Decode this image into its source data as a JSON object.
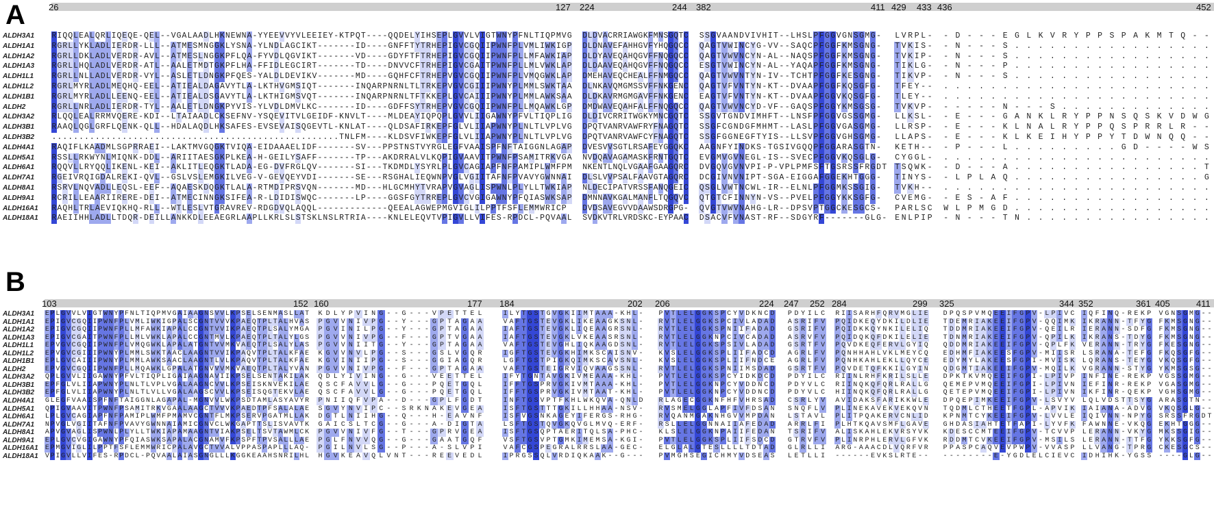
{
  "sequence_names": [
    "ALDH3A1",
    "ALDH1A1",
    "ALDH1A2",
    "ALDH1A3",
    "ALDH1L1",
    "ALDH1L2",
    "ALDH1B1",
    "ALDH2",
    "ALDH3A2",
    "ALDH3B1",
    "ALDH3B2",
    "ALDH4A1",
    "ALDH5A1",
    "ALDH6A1",
    "ALDH7A1",
    "ALDH8A1",
    "ALDH9A1",
    "ALDH16A1",
    "ALDH18A1"
  ],
  "colors": {
    "ruler": "#cfcfcf",
    "conserved_high": "#3447d6",
    "conserved_mid": "#6676e4",
    "conserved_low": "#9ea9ee",
    "conserved_faint": "#d3d8f7"
  },
  "panels": [
    {
      "label": "A",
      "blocks": [
        {
          "start": "26",
          "end": "127",
          "rows": [
            "RIQQLEALQRLIQEQE-QEL--VGALAADLHKNEWNA-YYEEVVYVLEEIEY-KTPQT----QQDELYIHSEPLGVVLVIGTWNYPFNLTIQPMVG",
            "RGRLLYKLADLIERDR-LLL--ATMESMNGGKLYSNA-YLNDLAGCIKT-------ID----GNFFTYTRHEPIGVCGQIIPWNFPLVMLIWKIGP",
            "RGRLLDKLADLVERDR-AVL--ATMESLNGGKPFLQA-FYVDLQGVIKT-------VD----GDYFTFTRHEPIGVCGQIIPWNFPLLMFAWKIAP",
            "RGRLLHQLADLVERDR-ATL--AALETMDTGKPFLHA-FFIDLEGCIRT-------TD----DNVVCFTRHEPIGVCGAITPWNFPLLMLVWKLAP",
            "RGRLLNLLADLVERDR-VYL--ASLETLDNGKPFQES-YALDLDEVIKV-------MD----GQHFCFTRHEPVGVCGQIIPWNFPLVMQGWKLAP",
            "RGRLMYRLADLMEQHQ-EEL--ATIEALDAGAVYTLA-LKTHVGMSIQT-------INQARPNRNLTLTRKEPVGVCGIIIPWNYPLMMLSWKTAA",
            "RGRLMYRLADLLEENQ-EEL--ATIEALDSGAVYTLA-LKTHIGMSVQT-------INQARPNRNLTFTKKEPLGVCAIIIPWNYPLMMLAWKSAA",
            "RGRLLNRLADLIERDR-TYL--AALETLDNGKPYVIS-YLVDLDMVLKC-------ID----GDFFSYTRHEPVGVCGQIIPWNFPLLMQAWKLGP",
            "RLQQLEALRRMVQERE-KDI--LTAIAADLCKSEFNV-YSQEVITVLGEIDF-KNVLT----MLDEAYIQPQPLGVVLIIGAWNYPFVLTIQPLIG",
            "RAAQLQGLGRFLQENK-QLL--HDALAQDLHKSAFES-EVSEVAISQGEVTL-KNLAT----QLDSAFIRKEPFGLVLIIAPWNYPLNLTLVPLVG",
            ".....................................................TNLFM----KLDSVFIWKEPFGLVLIIAPWNYPLNLTLVPLVG",
            "RAQIFLKAADMLSGPRRAEI--LAKTMVGQGKTVIQA-EIDAAAELIDF-------SV---PPSTNSTVYRGLEGFVAAISPFNFTAIGGNLAGAP",
            "RSSLLRKWYNLMIQNK-DDL--ARIITAESGKPLKEA-H-GEILYSAFF-------TP---AKDRRALVLKQPIGVAAVITPWNFPSAMITRKVGA",
            "RQQVLLRYQQLIKENL-KEI--AKLITLEQGKTLADA-EG-DVFRGLQV-------SI---TKDMDLYSYRLPLGVCAGIAPFNFPAMIPLWMFPM",
            "RGEIVRQIGDALREKI-QVL--GSLVSLEMGKILVEG-V-GEVQEYVDI-------SE---RSGHALIEQWNPVGLVGIITAFNFPVAVYGWNNAI",
            "RSRVLNQVADLLEQSL-EEF--AQAESKDQGKTLALA-RTMDIPRSVQN-------MD---HLGCMHYTVRAPVGVAGLISPWNLPLYLLTWKIAP",
            "RCRILLEAARIIRERE-DEI--ATMECINNGKSIFEA-R-LDIDISWQC-------LP----GGSFGYTRREPLGVCVGIGAWNYPFQIASWKSAP",
            "RAQHLTRLAEVIQKHQ-RLL--WTLESLVTGRAVREV-RDGDVQLAQQL-------------QEEALAGWEPMGVIGLILPPTFSFLEMMWRICP",
            "RAEIIHHLADLLTDQR-DEILLANKKDLEEAEGRLAAPLLKRLSLSTSKLNSLRTRIA----KNLELEQVTVPIGVLLVIFES-RPDCL-PQVAAL"
          ]
        },
        {
          "start": "224",
          "end": "244",
          "rows": [
            "DLDVACRRIAWGKFMNSGQTC",
            "DLDNAVEFAHHGVFYHQGQCC",
            "DLDYAVEQAHQGVFFNQGQCC",
            "DLDAAVEQAHQGVFFNQGQCC",
            "DMEHAVEQCHEALFFNMGQCC",
            "DLNKAVQMGMSSVFFNKGENC",
            "DLDKAVRMGMGAVFFNKGENC",
            "DMDWAVEQAHFALFFNQGQCC",
            "DLDIVCRRITWGKYMNCGQTC",
            "DPQTVANRVAWFRYFNAGQTC",
            "DPQTVANRVAWFCYFNAGQTC",
            "DVESVVSGTLRSAFEYGGQKC",
            "NVDQAVAGAMASKFRNTGQTC",
            "NKENTLNQLVGAAFGAAGQRC",
            "DLSLVVPSALFAAVGTAGQRC",
            "NLDECIPATVRSSFANQGEIC",
            "DMNNAVKGALMANFLTQGQVC",
            "DVDSAVEGVVDAAWSDRGPG-",
            "SVDKVTRLVRDSKC-EYPAAC"
          ]
        },
        {
          "start": "382",
          "end": "411",
          "rows": [
            "SSGVAANDVIVHIT--LHSLPFGGVGNSGMG-",
            "QAGTVWINCYG-VV--SAQCPFGGFKMSGNG-",
            "QAGTVWVNCYN-AL--NAQSPFGGFKMSGNG-",
            "ESGTVWINCYN-AL--YAQAPFGGFKMSGNG-",
            "QAGTVWVNTYN-IV--TCHTPFGGFKESGNG-",
            "QAGTVFVNTYN-KT--DVAAPFGGFKQSGFG-",
            "EAGTVFVNTYN-KT--DVAAPFGGVKQSGFG-",
            "QAGTVWVNCYD-VF--GAQSPFGGYKMSGSG-",
            "SSGVTGNDVIMHFT--LNSFPFGGVGSSGMG-",
            "SSGFCGNDGFMHMT--LASLPFGGVGASGMG-",
            "SSGFGGNEGFTYIS--LLSVPFGGVGHSGMG-",
            "AAGNFYINDKS-TGSIVGQQPFGGARASGTN-",
            "EVGMVGVNEGL-IS--SVECPFGGVKQSGLG-",
            "DVGQVGVNVPI-P-VPLPMFSFTGSRSSFRGDT",
            "DCGIVNVNIPT-SGA-EIGGAFGGEKHTGGG-",
            "QSGLVWTNCWL-IR--ELNLPFGGMKSSGIG-",
            "QTGTCFINNYN-VS--PVELPFGGYKKSGFG-",
            "QVGTVWVNAHG-LR--DPSVPTGGCKESGCS-",
            "DSACVFVNAST-RF--SDGYRF-------GLG-"
          ]
        },
        {
          "start": "429",
          "end": "433",
          "rows": [
            "LVRPL-",
            "TVKIS-",
            "TVKIP-",
            "TIKLG-",
            "TIKVP-",
            "TFEY--",
            "TLEY--",
            "TVKVP-",
            "LLKSL-",
            "LLRSP-",
            "LLAPS-",
            "KETH--",
            "CYGGL-",
            "TSQWK-",
            "TINYS-",
            "TVKH--",
            "CVEMG-",
            "PARLSC",
            "ENLPIP"
          ]
        },
        {
          "start": "436",
          "end": "452",
          "rows": [
            "-D---EGLKVRYPPSPAKMTQ--",
            "-N---S.................",
            "-N---S.................",
            "-N---P.................",
            "-N---S.................",
            ".......................",
            ".......................",
            "-----N---S.............",
            "-E---GANKLRYPPNSQSKVDWG",
            "-E---KLNALRYPPQSPRRLR--",
            "-E---KLKEIHYPPYTDWNQQ--",
            "-P---L.........GD----WS",
            ".......................",
            "-D---A................T",
            "-LPLAQ................G",
            ".......................",
            "-ES-AF.................",
            "WLPMGD.................",
            "-N---TN................"
          ]
        }
      ]
    },
    {
      "label": "B",
      "blocks": [
        {
          "start": "103",
          "end": "152",
          "rows": [
            "EPLGVVLVIGTWNYPFNLTIQPMVGAIAAGNSVVLKPSELSENMASLLAT",
            "EPIGVCGQIIPWNFPLVMLIWKIGPALSCGNTVVVKPAEQTPLTALHVAS",
            "EPIGVCGQIIPWNFPLLMFAWKIAPALCCGNTVVIKPAEQTPLSALYMGA",
            "EPIGVCGAITPWNFPLLMLVWKLAPALCCGNTMVLKPAEQTPLTALYLGS",
            "EPVGVCGQIIPWNFPLVMQGWKLAPALATGNTVVMKVAEQTPLSALYLAS",
            "EPVGVCGIIIPWNYPLMMLSWKTAACLAAGNTVVIKPAQVTPLTALKFAE",
            "EPLGVCAIIIPWNYPLMMLAWKSAACLAAGNTLVLKPAQVTPLTALKFAE",
            "EPVGVCGQIIPWNFPLLMQAWKLGPALATGNVVVMKVAEQTPLTALYVAN",
            "QPLGVVLIIGAWNYPFVLTIQPLIGAIAAGNAVIIKPSELSENTAKILAK",
            "EPFGLVLIIAPWNYPLNLTLVPLVGALAAGNCVVLKPSEISKNVEKILAE",
            "EPFGLVLIIAPWNYPLNLTLVLLVGALAAGSCVVLKPSEISQGTEKVLAE",
            "GLEGFVAAISPFNFTAIGGNLAGAPAL-MGNVVLWKPSDTAMLASYAVYR",
            "QPIGVAAVITPWNFPSAMITRKVGAALAAGCTVVVKPAEDTPFSALALAE",
            "LPLGVCAGIAPFNFPAMIPLWMFPMAMVCGNTFLMKPSERVPGATMLLAK",
            "NPVGLVGIITAFNFPVAVYGWNNAIAMICGNVCLWKGAPTTSLISVAVTK",
            "APVGVAGLISPWNLPLYLLTWKIAPAMAAGNTVIAKPSELTSVTAWMLCK",
            "EPLGVCVGIGAWNYPFQIASWKSAPALACGNAMVFKPSPFTPVSALLLAE",
            "EPMGVIGLILPPTFSFLEMMWRICPALAVGCTVVALVPPASPAPLLLAQ-",
            "VPIGVLLVIFES-RPDCL-PQVAALAIASGNGLLLKGGKEAAHSNRILHL"
          ]
        },
        {
          "start": "160",
          "end": "177",
          "rows": [
            "KDLYPVING--G---VPETTEL",
            "PGVVNIVPG--Y---GPTAGAA",
            "PGVINILPG--Y---GPTAGAA",
            "PGVVNIVPG--F---GPTVGAA",
            "PGVVNIITG--Y---GPTAGAA",
            "KGVVNVLPG--S---GSLVGQR",
            "KGVINIIPG--S---GGIAGQR",
            "PGVVNIVPG--F---GPTAGAA",
            "QDLYIVING--G---VEETTEL",
            "QSCFAVVLG--G---PQETGQL",
            "QSCFAVVLG--G---PQETGQL",
            "PNIIQFVPA--D---GPLFGDT",
            "SGVYNVIPC--SRKNAKEVGEA",
            "DGTLNIIHG--Q---H-EAVNF",
            "GAICSLTCG--G---A-DIGTA",
            "PGVVNIVFG--T---GPRVGEA",
            "PGLFNVVQG--G---GAATGQF",
            "PGILNVLSG--P---A-SLVPI",
            "HGVKEAVQLVNT---REEVEDL"
          ]
        },
        {
          "start": "184",
          "end": "202",
          "rows": [
            "ILYTGSTGVGKIIMTAAA-KHL-",
            "VAFTGSTEVGKLIKEAAGKSNL-",
            "IAFTGSTEVGKLIQEAAGRSNL-",
            "IAFTGSTEVGKLVKEAASRSNL-",
            "VAFTGSTEVGHLIQKAAGDSNL-",
            "IGFTGSTEVGKHIMKSCAISNV-",
            "LGFTGSTPIGKQIMKSCAVSNL-",
            "VAFTGSTEIGRVIQVAAGSSNL-",
            "IFYTGNTAVGKIVMEAAA-KHL-",
            "IFFTGSPRVGKIVMTAAA-KHL-",
            "IFFTGSPRVGKIVMTAAT-KHL-",
            "INFTGSVPTFKHLWKQVA-QNLD",
            "ISFTGSTTTGKILLHHAA-NSV-",
            "ISFVGSNKAGEYIFERGS-RHG-",
            "LSFTGSTQVGKQVGLMVQ-ERF-",
            "ISFTGSQPTAERITQLSA-PHC-",
            "VSFTGSVPTGMKIMEMSA-KGI-",
            "VAFCGSPEGRALRRSLAA-GEC-",
            "IPRGSSQLVRDIQKAAK--G---"
          ]
        },
        {
          "start": "206",
          "end": "224",
          "rows": [
            "PVTLELGGKSPCYVDKNCD",
            "RVTLELGGKSPCIVLADAD",
            "RVTLELGGKSPNIIFADAD",
            "RVTLELGGKNPCIVCADAD",
            "RVTLELGGKSPSIVLADAD",
            "KVSLELGGKSPLIIFADCD",
            "KVSLELGGKSPLIIFNDCE",
            "RVTLELGGKSPNIIMSDAD",
            "PVTLELGGKSPCYIDKDCD",
            "PVTLELGGKNPCYVDDNCD",
            "PVTLELGGKNPCYVDDNCD",
            "RLAGECGGKNFHFVHRSAD",
            "RVSMELGGLAPFIVFDSAN",
            "RVQANMGAKNHGVVMPDAN",
            "RSLLELGGNNAIIAFEDAD",
            "KLSLELGGKNPAIIFEDAN",
            "PVTLELGGKSPLIIFSDCD",
            "ELGLALGTESLLLLTDTAD",
            "PVMGHSEGICHMYVDSEAS"
          ]
        },
        {
          "start": "247",
          "end": "252",
          "rows": [
            "PDYILC",
            "ASRIFV",
            "GSRIFV",
            "ASRVFV",
            "GSRTFV",
            "AGRLFV",
            "AGRLFV",
            "GSRTFV",
            "PDYILC",
            "PDYVLC",
            "PDYVLC",
            "CSRLYV",
            "SNQFLV",
            "LSTAVL",
            "ARRLFI",
            "TSRIFV",
            "GTRVFV",
            "GLRLLI",
            "LETLLI"
          ]
        },
        {
          "start": "284",
          "end": "299",
          "rows": [
            "RIISARHFQRVMGLIE",
            "PQIDKEQYDKILDLIE",
            "PQIDKKQYNKILELIQ",
            "PQIDQKQFDKILELIE",
            "PQVDKEQFERVLGYIQ",
            "PQNHHAHLVKLMEYCQ",
            "PQNHKAHLEKLLQYCE",
            "PQVDETQFKKILGYIN",
            "RIINLRHFKRILSLLE",
            "RIINQKQFQRLRALLG",
            "HIINQKQFQRLRALLG",
            "AVIDAKSFARIKKWLE",
            "PLINEKAVEKVEKQVN",
            "PLITPQAKERVCNLID",
            "PLHTKQAVSMFLGAVE",
            "ALISKAHLEKVRSYVK",
            "PLINRPHLERVLGFVK",
            "ARG-AAACDLVQRFVR",
            "------EVKSLRTE--"
          ]
        },
        {
          "start": "325",
          "end": "344",
          "rows": [
            "DPQSPVMQEEIFGPV-LPIVC",
            "TDEMRIAKEEIFGPV-QQIMK",
            "TDDMRIAKEEIFGPV-QEILR",
            "TDNMRIAKEEIFGPV-QPILK",
            "QDDMRIAKEEIFGPV-QPLFK",
            "EDHMFIAKEESFGPV-MIISR",
            "EDYMYLAKEESFGPI-MVISK",
            "QDGMTIAKEEIFGPV-MQILK",
            "DPKTKVMQEEIFGPI-LPIVP",
            "QEMEPVMQEEIFGPI-LPIVN",
            "QETEPVMQEEIFGPI-LPIVN",
            "DPQEPIMKEEIFGPV-LSVYV",
            "TQDMLCTHEETFGPL-APVIK",
            "KPNMTCYKEEIFGPV-LVVLE",
            "GHDASIAHTETFAPI-LYVFK",
            "KDESCCMTEEIFGPV-TCVVP",
            "RDDMTCVKEEIFGPV-MSILS",
            "PPASPCAQVEVPWPV-VVASP",
            "--------E-YGDLELCIEVC"
          ]
        },
        {
          "start": "352",
          "end": "361",
          "rows": [
            "IQFINQ-REKP",
            "IKRANN-TFYG",
            "IERANN-SDFG",
            "IKRANS-TDYG",
            "VERANN-TRYG",
            "LSRANA-TEFG",
            "LQRANS-TEYG",
            "VGRANN-STYG",
            "INFINE-REKP",
            "IEFINR-REKP",
            "IKFINR-QEKP",
            "LQLVDSTTSYG",
            "IAIANA-ADVG",
            "IQIVNN-NPYG",
            "FAWNNE-VKQG",
            "LERANN-VKYG",
            "LERANN-TTFG",
            "LLVANG-TPRG",
            "IDHIHK-YGSS"
          ]
        },
        {
          "start": "405",
          "end": "411",
          "rows": [
            "VGNSGMG--",
            "FKMSGNG--",
            "FKMSGNG--",
            "FKMSGNG--",
            "FKESGNG--",
            "FKQSGFG--",
            "VKQSGFG--",
            "YKMSGSG--",
            "VGSSGMG--",
            "VGASGMG--",
            "VGHSGMG--",
            "ARASGTN--",
            "VKQSGLG--",
            "SRSSFRGDT",
            "EKHTGGG--",
            "MKSSGIG--",
            "YKKSGFG--",
            "CKESGCS--",
            "----GLG--"
          ]
        }
      ]
    }
  ]
}
